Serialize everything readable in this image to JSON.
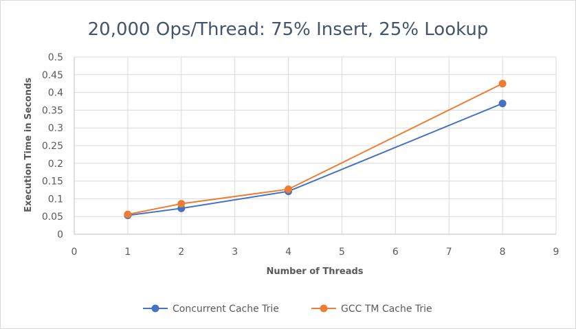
{
  "chart_data": {
    "type": "line",
    "title": "20,000 Ops/Thread: 75% Insert, 25% Lookup",
    "xlabel": "Number of Threads",
    "ylabel": "Execution Time in Seconds",
    "xlim": [
      0,
      9
    ],
    "ylim": [
      0,
      0.5
    ],
    "xticks": [
      0,
      1,
      2,
      3,
      4,
      5,
      6,
      7,
      8,
      9
    ],
    "xtick_labels": [
      "0",
      "1",
      "2",
      "3",
      "4",
      "5",
      "6",
      "7",
      "8",
      "9"
    ],
    "yticks": [
      0,
      0.05,
      0.1,
      0.15,
      0.2,
      0.25,
      0.3,
      0.35,
      0.4,
      0.45,
      0.5
    ],
    "ytick_labels": [
      "0",
      "0.05",
      "0.1",
      "0.15",
      "0.2",
      "0.25",
      "0.3",
      "0.35",
      "0.4",
      "0.45",
      "0.5"
    ],
    "grid": true,
    "legend_position": "bottom",
    "series": [
      {
        "name": "Concurrent Cache Trie",
        "color": "#4472c4",
        "x": [
          1,
          2,
          4,
          8
        ],
        "y": [
          0.053,
          0.073,
          0.121,
          0.369
        ]
      },
      {
        "name": "GCC TM Cache Trie",
        "color": "#ed7d31",
        "x": [
          1,
          2,
          4,
          8
        ],
        "y": [
          0.056,
          0.086,
          0.127,
          0.425
        ]
      }
    ]
  }
}
